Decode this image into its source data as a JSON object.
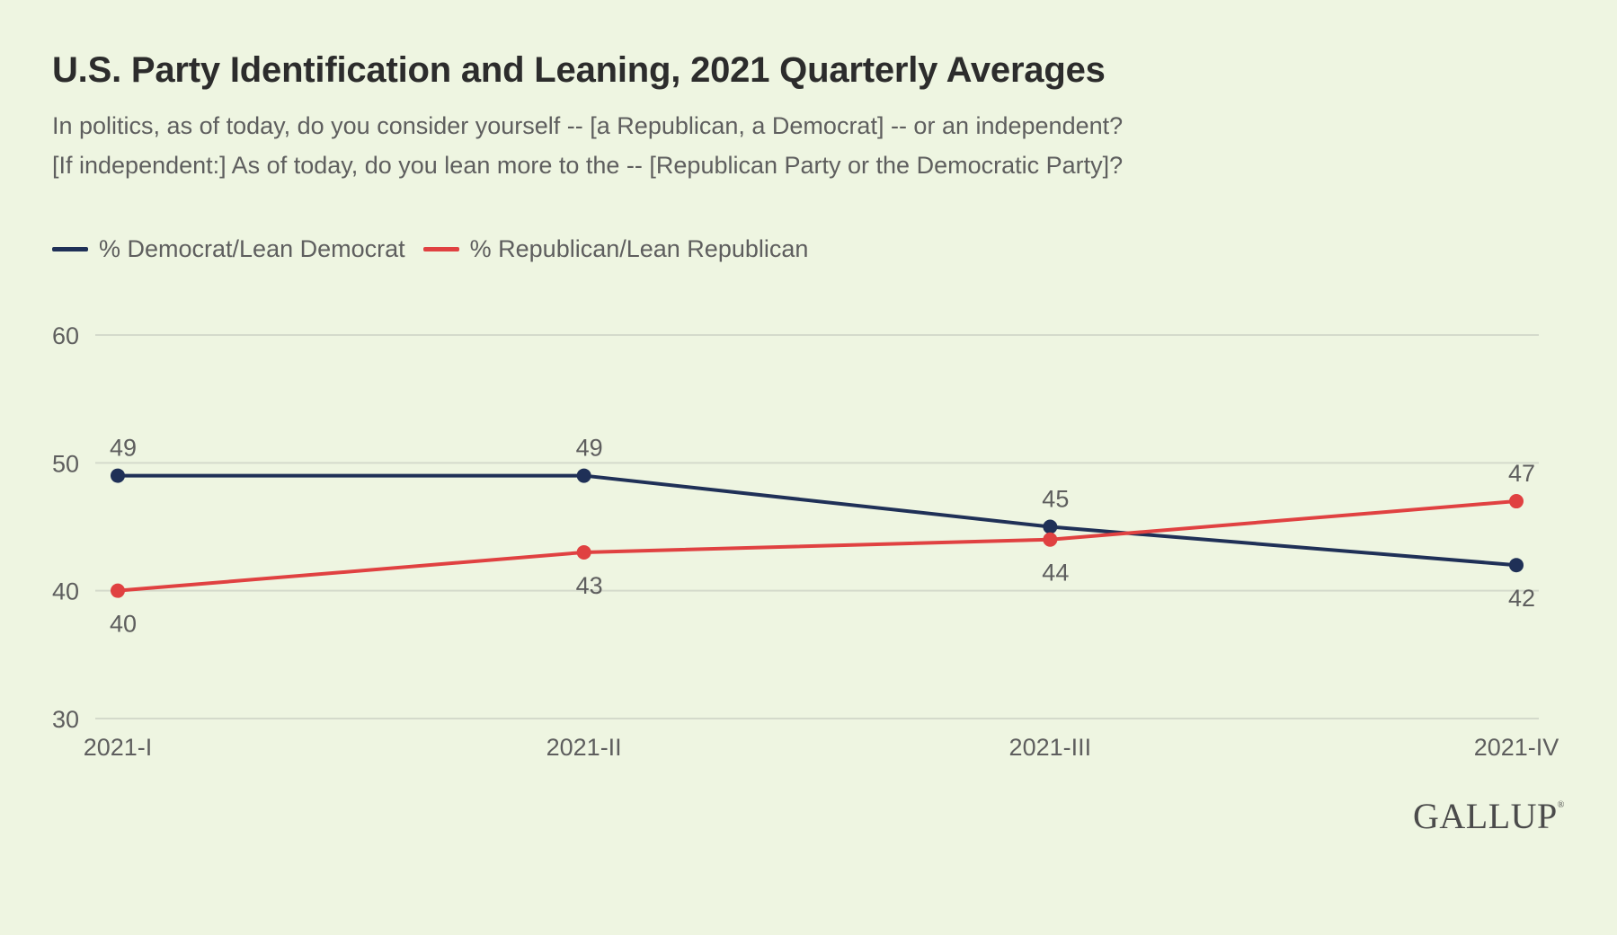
{
  "header": {
    "title": "U.S. Party Identification and Leaning, 2021 Quarterly Averages",
    "subtitle_line1": "In politics, as of today, do you consider yourself -- [a Republican, a Democrat] -- or an independent?",
    "subtitle_line2": "[If independent:] As of today, do you lean more to the -- [Republican Party or the Democratic Party]?"
  },
  "logo": {
    "text": "GALLUP"
  },
  "colors": {
    "democrat": "#1f3057",
    "republican": "#e04141",
    "grid": "#d4dacb",
    "axis_text": "#5e5e5e"
  },
  "chart_data": {
    "type": "line",
    "title": "U.S. Party Identification and Leaning, 2021 Quarterly Averages",
    "categories": [
      "2021-I",
      "2021-II",
      "2021-III",
      "2021-IV"
    ],
    "series": [
      {
        "name": "% Democrat/Lean Democrat",
        "values": [
          49,
          49,
          45,
          42
        ],
        "color": "#1f3057"
      },
      {
        "name": "% Republican/Lean Republican",
        "values": [
          40,
          43,
          44,
          47
        ],
        "color": "#e04141"
      }
    ],
    "ylim": [
      30,
      60
    ],
    "yticks": [
      30,
      40,
      50,
      60
    ],
    "grid": true,
    "legend": "top-left",
    "xlabel": "",
    "ylabel": ""
  }
}
